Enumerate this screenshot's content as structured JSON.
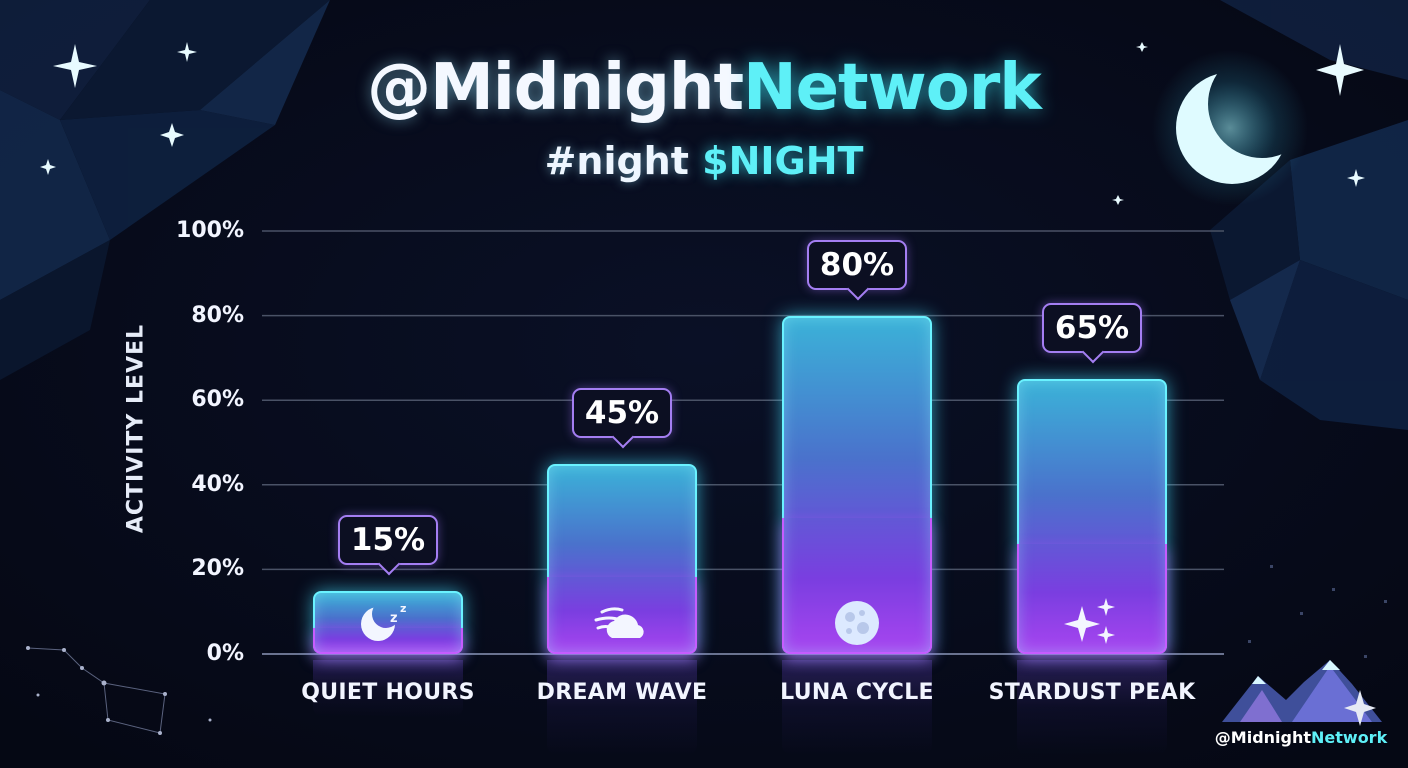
{
  "header": {
    "title_prefix": "@Midnight",
    "title_accent": "Network",
    "subtitle_prefix": "#night",
    "subtitle_accent": "$NIGHT"
  },
  "watermark": {
    "prefix": "@Midnight",
    "accent": "Network"
  },
  "colors": {
    "background": "#060a18",
    "accent_cyan": "#5ef0f7",
    "bar_top": "#3bb2d8",
    "bar_bottom": "#a845f0",
    "badge_border": "#a47ef2",
    "gridline": "#4a5266"
  },
  "chart_data": {
    "type": "bar",
    "title": "",
    "xlabel": "",
    "ylabel": "ACTIVITY LEVEL",
    "ylim": [
      0,
      100
    ],
    "y_ticks": [
      0,
      20,
      40,
      60,
      80,
      100
    ],
    "y_tick_labels": [
      "0%",
      "20%",
      "40%",
      "60%",
      "80%",
      "100%"
    ],
    "grid": true,
    "categories": [
      "QUIET HOURS",
      "DREAM WAVE",
      "LUNA CYCLE",
      "STARDUST PEAK"
    ],
    "values": [
      15,
      45,
      80,
      65
    ],
    "value_labels": [
      "15%",
      "45%",
      "80%",
      "65%"
    ],
    "icons": [
      "crescent-moon-zzz-icon",
      "wind-cloud-icon",
      "full-moon-icon",
      "sparkles-icon"
    ]
  }
}
